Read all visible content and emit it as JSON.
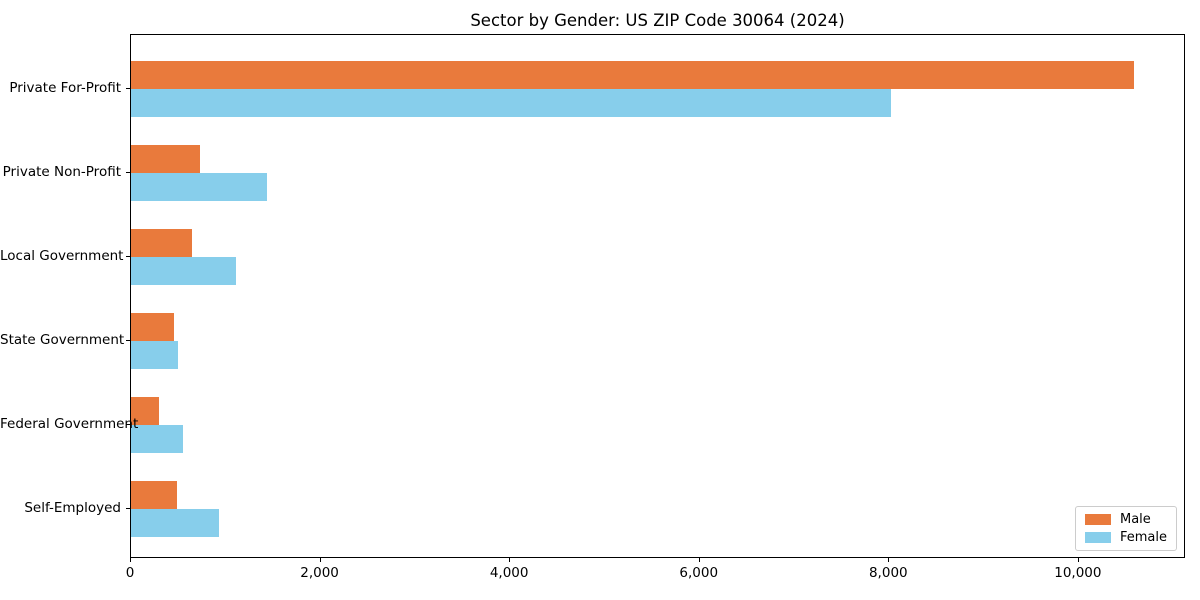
{
  "title": "Sector by Gender: US ZIP Code 30064 (2024)",
  "colors": {
    "male": "#e97a3c",
    "female": "#87ceeb",
    "spine": "#000000",
    "legend_border": "#cccccc",
    "background": "#ffffff"
  },
  "chart_data": {
    "type": "bar",
    "orientation": "horizontal",
    "title": "Sector by Gender: US ZIP Code 30064 (2024)",
    "xlabel": "",
    "ylabel": "",
    "categories": [
      "Private For-Profit",
      "Private Non-Profit",
      "Local Government",
      "State Government",
      "Federal Government",
      "Self-Employed"
    ],
    "series": [
      {
        "name": "Male",
        "color": "#e97a3c",
        "values": [
          10600,
          730,
          650,
          450,
          300,
          490
        ]
      },
      {
        "name": "Female",
        "color": "#87ceeb",
        "values": [
          8030,
          1440,
          1110,
          500,
          550,
          930
        ]
      }
    ],
    "xlim": [
      0,
      11130
    ],
    "x_ticks": [
      0,
      2000,
      4000,
      6000,
      8000,
      10000
    ],
    "x_tick_labels": [
      "0",
      "2,000",
      "4,000",
      "6,000",
      "8,000",
      "10,000"
    ],
    "grid": false,
    "legend": {
      "position": "lower right",
      "entries": [
        "Male",
        "Female"
      ]
    }
  }
}
